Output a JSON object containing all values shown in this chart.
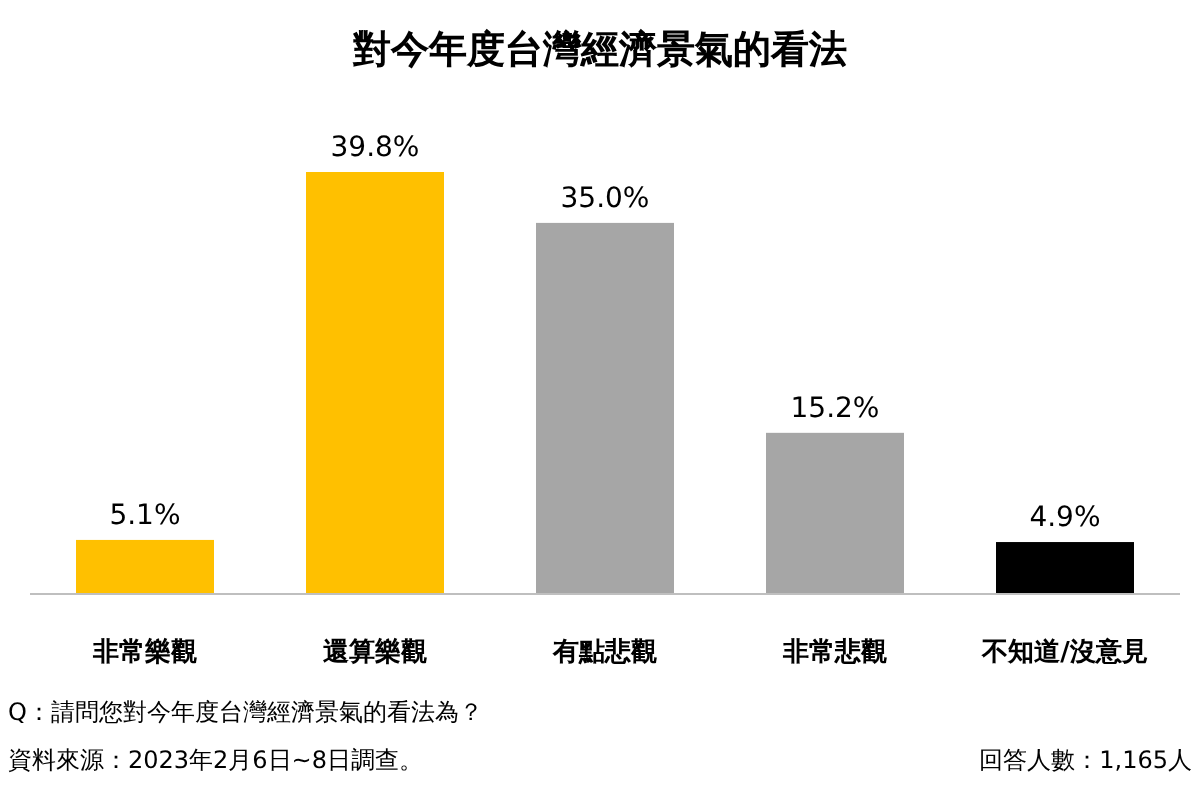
{
  "chart_data": {
    "type": "bar",
    "title": "對今年度台灣經濟景氣的看法",
    "categories": [
      "非常樂觀",
      "還算樂觀",
      "有點悲觀",
      "非常悲觀",
      "不知道/沒意見"
    ],
    "values": [
      5.1,
      39.8,
      35.0,
      15.2,
      4.9
    ],
    "colors": [
      "#ffc000",
      "#ffc000",
      "#a6a6a6",
      "#a6a6a6",
      "#000000"
    ],
    "value_labels": [
      "5.1%",
      "39.8%",
      "35.0%",
      "15.2%",
      "4.9%"
    ],
    "annotations": [
      "Q：請問您對今年度台灣經濟景氣的看法為？",
      "資料來源：2023年2月6日~8日調查。",
      "回答人數：1,165人"
    ]
  }
}
